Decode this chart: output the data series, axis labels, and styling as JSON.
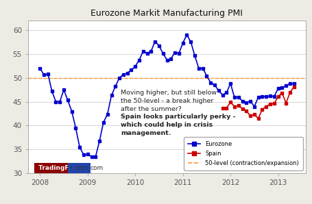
{
  "title": "Eurozone Markit Manufacturing PMI",
  "background_color": "#eeeae4",
  "plot_bg_color": "#ffffff",
  "eurozone_x": [
    2008.0,
    2008.083,
    2008.167,
    2008.25,
    2008.333,
    2008.417,
    2008.5,
    2008.583,
    2008.667,
    2008.75,
    2008.833,
    2008.917,
    2009.0,
    2009.083,
    2009.167,
    2009.25,
    2009.333,
    2009.417,
    2009.5,
    2009.583,
    2009.667,
    2009.75,
    2009.833,
    2009.917,
    2010.0,
    2010.083,
    2010.167,
    2010.25,
    2010.333,
    2010.417,
    2010.5,
    2010.583,
    2010.667,
    2010.75,
    2010.833,
    2010.917,
    2011.0,
    2011.083,
    2011.167,
    2011.25,
    2011.333,
    2011.417,
    2011.5,
    2011.583,
    2011.667,
    2011.75,
    2011.833,
    2011.917,
    2012.0,
    2012.083,
    2012.167,
    2012.25,
    2012.333,
    2012.417,
    2012.5,
    2012.583,
    2012.667,
    2012.75,
    2012.833,
    2012.917,
    2013.0,
    2013.083,
    2013.167,
    2013.25,
    2013.333
  ],
  "eurozone_y": [
    52.0,
    50.6,
    50.8,
    47.2,
    45.0,
    45.0,
    47.5,
    45.3,
    43.0,
    39.5,
    35.5,
    33.9,
    34.0,
    33.5,
    33.5,
    36.8,
    40.7,
    42.4,
    46.3,
    48.2,
    50.0,
    50.7,
    51.0,
    51.6,
    52.4,
    53.7,
    55.6,
    55.1,
    55.6,
    57.6,
    56.7,
    55.1,
    53.7,
    54.0,
    55.3,
    55.1,
    57.3,
    59.0,
    57.5,
    54.6,
    52.0,
    52.0,
    50.4,
    49.0,
    48.5,
    47.3,
    46.4,
    46.9,
    48.8,
    45.9,
    46.0,
    45.1,
    44.8,
    45.1,
    44.0,
    45.9,
    46.1,
    46.1,
    46.2,
    46.1,
    47.8,
    47.9,
    48.3,
    48.8,
    48.8
  ],
  "spain_x": [
    2011.833,
    2011.917,
    2012.0,
    2012.083,
    2012.167,
    2012.25,
    2012.333,
    2012.417,
    2012.5,
    2012.583,
    2012.667,
    2012.75,
    2012.833,
    2012.917,
    2013.0,
    2013.083,
    2013.167,
    2013.25,
    2013.333
  ],
  "spain_y": [
    43.7,
    43.7,
    44.9,
    44.0,
    44.2,
    43.5,
    43.1,
    42.0,
    42.3,
    41.5,
    43.4,
    44.0,
    44.5,
    44.6,
    46.1,
    46.8,
    44.7,
    47.0,
    48.1
  ],
  "fifty_level": 50,
  "ylim": [
    30,
    62
  ],
  "xlim": [
    2007.75,
    2013.58
  ],
  "yticks": [
    30,
    35,
    40,
    45,
    50,
    55,
    60
  ],
  "xticks": [
    2008,
    2009,
    2010,
    2011,
    2012,
    2013
  ],
  "annotation1": "Moving higher, but still below\nthe 50-level - a break higher\nafter the summer?",
  "annotation2": "Spain looks particularly perky -\nwhich could help in crisis\nmanagement.",
  "ann1_x": 2009.7,
  "ann1_y": 47.5,
  "ann2_x": 2009.7,
  "ann2_y": 42.5,
  "eurozone_color": "#0000cc",
  "spain_color": "#cc0000",
  "fifty_color": "#ff9933",
  "logo_bg": "#8b0000",
  "logo_text_color": "#ffffff",
  "logo_separator_color": "#2244aa",
  "grid_color": "#d8d8d8",
  "tick_color": "#555555",
  "spine_color": "#aaaaaa"
}
